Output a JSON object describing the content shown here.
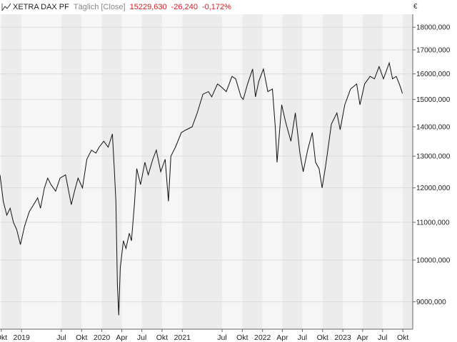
{
  "header": {
    "symbol": "XETRA DAX PF",
    "period": "Täglich [Close]",
    "price": "15229,630",
    "change": "-26,240",
    "change_pct": "-0,172%",
    "icon": "chart-line-icon"
  },
  "colors": {
    "line": "#111111",
    "negative": "#cc2222",
    "band_light": "#f6f6f6",
    "band_dark": "#ececec",
    "grid": "#dcdcdc",
    "axis": "#666666"
  },
  "chart_data": {
    "type": "line",
    "title": "XETRA DAX PF",
    "currency_label": "€",
    "y_log": true,
    "grid": true,
    "ylim": [
      8400,
      18600
    ],
    "xlim": [
      "2018-09-25",
      "2023-11-15"
    ],
    "y_ticks": [
      {
        "value": 9000,
        "label": "9000,000"
      },
      {
        "value": 10000,
        "label": "10000,000"
      },
      {
        "value": 11000,
        "label": "11000,000"
      },
      {
        "value": 12000,
        "label": "12000,000"
      },
      {
        "value": 13000,
        "label": "13000,000"
      },
      {
        "value": 14000,
        "label": "14000,000"
      },
      {
        "value": 15000,
        "label": "15000,000"
      },
      {
        "value": 16000,
        "label": "16000,000"
      },
      {
        "value": 17000,
        "label": "17000,000"
      },
      {
        "value": 18000,
        "label": "18000,000"
      }
    ],
    "x_ticks": [
      {
        "date": "2018-10-01",
        "label": "Okt"
      },
      {
        "date": "2019-01-01",
        "label": "2019"
      },
      {
        "date": "2019-07-01",
        "label": "Jul"
      },
      {
        "date": "2019-10-01",
        "label": "Okt"
      },
      {
        "date": "2020-01-01",
        "label": "2020"
      },
      {
        "date": "2020-04-01",
        "label": "Apr"
      },
      {
        "date": "2020-07-01",
        "label": "Jul"
      },
      {
        "date": "2020-10-01",
        "label": "Okt"
      },
      {
        "date": "2021-01-01",
        "label": "2021"
      },
      {
        "date": "2021-07-01",
        "label": "Jul"
      },
      {
        "date": "2021-10-01",
        "label": "Okt"
      },
      {
        "date": "2022-01-01",
        "label": "2022"
      },
      {
        "date": "2022-04-01",
        "label": "Apr"
      },
      {
        "date": "2022-07-01",
        "label": "Jul"
      },
      {
        "date": "2022-10-01",
        "label": "Okt"
      },
      {
        "date": "2023-01-01",
        "label": "2023"
      },
      {
        "date": "2023-04-01",
        "label": "Apr"
      },
      {
        "date": "2023-07-01",
        "label": "Jul"
      },
      {
        "date": "2023-10-01",
        "label": "Okt"
      }
    ],
    "series": [
      {
        "name": "XETRA DAX PF",
        "points": [
          [
            "2018-09-25",
            12400
          ],
          [
            "2018-10-10",
            11600
          ],
          [
            "2018-10-26",
            11200
          ],
          [
            "2018-11-10",
            11400
          ],
          [
            "2018-11-25",
            11000
          ],
          [
            "2018-12-10",
            10800
          ],
          [
            "2018-12-27",
            10400
          ],
          [
            "2019-01-15",
            10900
          ],
          [
            "2019-02-05",
            11300
          ],
          [
            "2019-02-25",
            11500
          ],
          [
            "2019-03-15",
            11700
          ],
          [
            "2019-03-28",
            11400
          ],
          [
            "2019-04-15",
            12000
          ],
          [
            "2019-04-30",
            12300
          ],
          [
            "2019-05-15",
            12100
          ],
          [
            "2019-06-05",
            11900
          ],
          [
            "2019-06-25",
            12300
          ],
          [
            "2019-07-20",
            12400
          ],
          [
            "2019-08-15",
            11500
          ],
          [
            "2019-08-30",
            11900
          ],
          [
            "2019-09-15",
            12300
          ],
          [
            "2019-10-05",
            12000
          ],
          [
            "2019-10-25",
            12900
          ],
          [
            "2019-11-15",
            13200
          ],
          [
            "2019-12-05",
            13100
          ],
          [
            "2019-12-20",
            13300
          ],
          [
            "2020-01-10",
            13500
          ],
          [
            "2020-01-30",
            13300
          ],
          [
            "2020-02-18",
            13750
          ],
          [
            "2020-02-26",
            12700
          ],
          [
            "2020-03-05",
            11600
          ],
          [
            "2020-03-12",
            9400
          ],
          [
            "2020-03-18",
            8700
          ],
          [
            "2020-03-25",
            9800
          ],
          [
            "2020-04-08",
            10500
          ],
          [
            "2020-04-20",
            10300
          ],
          [
            "2020-05-05",
            10700
          ],
          [
            "2020-05-15",
            10500
          ],
          [
            "2020-05-28",
            11500
          ],
          [
            "2020-06-08",
            12600
          ],
          [
            "2020-06-25",
            12100
          ],
          [
            "2020-07-15",
            12800
          ],
          [
            "2020-07-30",
            12400
          ],
          [
            "2020-08-20",
            12900
          ],
          [
            "2020-09-05",
            13200
          ],
          [
            "2020-09-25",
            12500
          ],
          [
            "2020-10-15",
            12900
          ],
          [
            "2020-10-30",
            11600
          ],
          [
            "2020-11-10",
            13000
          ],
          [
            "2020-12-01",
            13300
          ],
          [
            "2020-12-28",
            13800
          ],
          [
            "2021-01-20",
            13900
          ],
          [
            "2021-02-15",
            14000
          ],
          [
            "2021-03-10",
            14500
          ],
          [
            "2021-04-05",
            15200
          ],
          [
            "2021-04-30",
            15300
          ],
          [
            "2021-05-15",
            15100
          ],
          [
            "2021-06-10",
            15600
          ],
          [
            "2021-06-25",
            15500
          ],
          [
            "2021-07-20",
            15300
          ],
          [
            "2021-08-15",
            15900
          ],
          [
            "2021-09-01",
            15800
          ],
          [
            "2021-09-25",
            15100
          ],
          [
            "2021-10-05",
            15000
          ],
          [
            "2021-10-25",
            15600
          ],
          [
            "2021-11-17",
            16200
          ],
          [
            "2021-11-30",
            15100
          ],
          [
            "2021-12-15",
            15700
          ],
          [
            "2022-01-05",
            16200
          ],
          [
            "2022-01-25",
            15300
          ],
          [
            "2022-02-15",
            15400
          ],
          [
            "2022-02-28",
            14000
          ],
          [
            "2022-03-08",
            12800
          ],
          [
            "2022-03-29",
            14800
          ],
          [
            "2022-04-15",
            14200
          ],
          [
            "2022-05-10",
            13500
          ],
          [
            "2022-05-30",
            14500
          ],
          [
            "2022-06-20",
            13100
          ],
          [
            "2022-07-05",
            12500
          ],
          [
            "2022-07-25",
            13200
          ],
          [
            "2022-08-15",
            13800
          ],
          [
            "2022-08-30",
            12800
          ],
          [
            "2022-09-15",
            12600
          ],
          [
            "2022-09-29",
            12000
          ],
          [
            "2022-10-15",
            12700
          ],
          [
            "2022-11-10",
            14100
          ],
          [
            "2022-12-05",
            14500
          ],
          [
            "2022-12-20",
            13900
          ],
          [
            "2023-01-10",
            14800
          ],
          [
            "2023-02-05",
            15400
          ],
          [
            "2023-03-05",
            15600
          ],
          [
            "2023-03-20",
            14800
          ],
          [
            "2023-04-10",
            15600
          ],
          [
            "2023-05-05",
            15900
          ],
          [
            "2023-05-25",
            15800
          ],
          [
            "2023-06-15",
            16300
          ],
          [
            "2023-07-05",
            15800
          ],
          [
            "2023-07-31",
            16450
          ],
          [
            "2023-08-15",
            15800
          ],
          [
            "2023-09-01",
            15900
          ],
          [
            "2023-09-15",
            15600
          ],
          [
            "2023-09-25",
            15350
          ],
          [
            "2023-09-29",
            15229.63
          ]
        ]
      }
    ]
  }
}
